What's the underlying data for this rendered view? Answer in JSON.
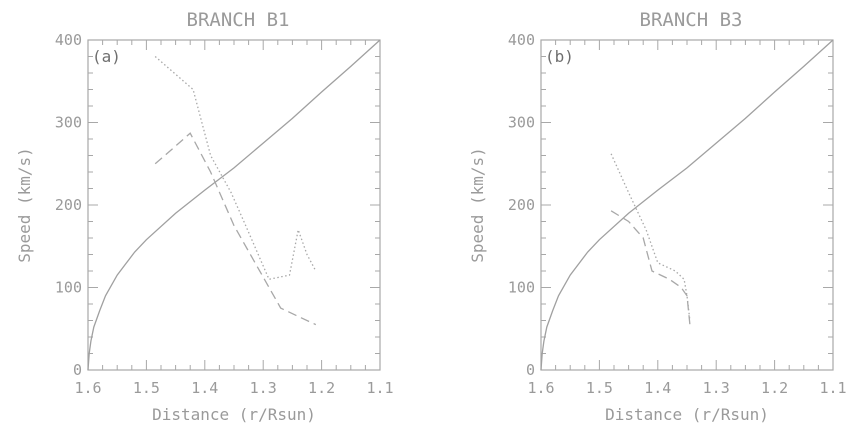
{
  "chart_data": [
    {
      "type": "line",
      "title": "BRANCH B1",
      "panel_label": "(a)",
      "xlabel": "Distance (r/Rsun)",
      "ylabel": "Speed (km/s)",
      "xlim": [
        1.6,
        1.1
      ],
      "ylim": [
        0,
        400
      ],
      "xticks": [
        "1.6",
        "1.5",
        "1.4",
        "1.3",
        "1.2",
        "1.1"
      ],
      "yticks": [
        "0",
        "100",
        "200",
        "300",
        "400"
      ],
      "grid": false,
      "series": [
        {
          "style": "solid",
          "x": [
            1.6,
            1.598,
            1.595,
            1.59,
            1.58,
            1.57,
            1.55,
            1.52,
            1.5,
            1.45,
            1.4,
            1.35,
            1.3,
            1.25,
            1.2,
            1.15,
            1.1
          ],
          "y": [
            0,
            20,
            35,
            52,
            72,
            90,
            115,
            143,
            158,
            190,
            218,
            245,
            275,
            305,
            337,
            368,
            400
          ]
        },
        {
          "style": "dotted",
          "x": [
            1.485,
            1.42,
            1.39,
            1.355,
            1.33,
            1.29,
            1.255,
            1.24,
            1.225,
            1.21
          ],
          "y": [
            380,
            340,
            260,
            215,
            175,
            110,
            115,
            170,
            140,
            120
          ]
        },
        {
          "style": "dashed",
          "x": [
            1.485,
            1.465,
            1.425,
            1.39,
            1.35,
            1.31,
            1.27,
            1.24,
            1.21
          ],
          "y": [
            250,
            262,
            287,
            240,
            175,
            125,
            75,
            65,
            55
          ]
        }
      ]
    },
    {
      "type": "line",
      "title": "BRANCH B3",
      "panel_label": "(b)",
      "xlabel": "Distance (r/Rsun)",
      "ylabel": "Speed (km/s)",
      "xlim": [
        1.6,
        1.1
      ],
      "ylim": [
        0,
        400
      ],
      "xticks": [
        "1.6",
        "1.5",
        "1.4",
        "1.3",
        "1.2",
        "1.1"
      ],
      "yticks": [
        "0",
        "100",
        "200",
        "300",
        "400"
      ],
      "grid": false,
      "series": [
        {
          "style": "solid",
          "x": [
            1.6,
            1.598,
            1.595,
            1.59,
            1.58,
            1.57,
            1.55,
            1.52,
            1.5,
            1.45,
            1.4,
            1.35,
            1.3,
            1.25,
            1.2,
            1.15,
            1.1
          ],
          "y": [
            0,
            20,
            35,
            52,
            72,
            90,
            115,
            143,
            158,
            190,
            218,
            245,
            275,
            305,
            337,
            368,
            400
          ]
        },
        {
          "style": "dotted",
          "x": [
            1.48,
            1.45,
            1.42,
            1.4,
            1.37,
            1.355,
            1.35,
            1.345
          ],
          "y": [
            262,
            215,
            170,
            130,
            120,
            110,
            90,
            60
          ]
        },
        {
          "style": "dashed",
          "x": [
            1.48,
            1.45,
            1.425,
            1.41,
            1.38,
            1.36,
            1.35,
            1.345
          ],
          "y": [
            193,
            180,
            160,
            120,
            110,
            100,
            90,
            55
          ]
        }
      ]
    }
  ]
}
